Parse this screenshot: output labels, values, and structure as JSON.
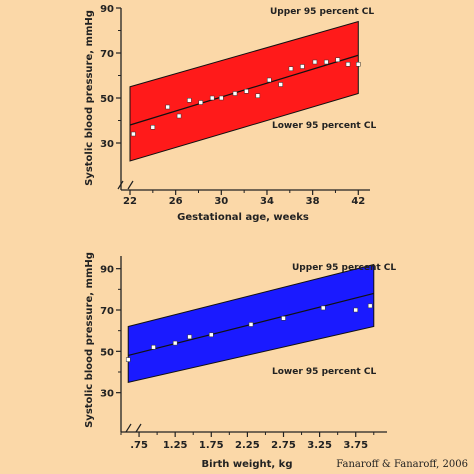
{
  "credit": "Fanaroff & Fanaroff, 2006",
  "colors": {
    "background": "#fbd8a8",
    "band_top": "#ff1a1a",
    "band_bottom": "#1a1aff",
    "axis": "#222222",
    "point": "#ffffff"
  },
  "chart_data": [
    {
      "type": "scatter",
      "xlabel": "Gestational age, weeks",
      "ylabel": "Systolic blood pressure, mmHg",
      "xlim": [
        22,
        42.5
      ],
      "ylim": [
        10,
        90
      ],
      "x_ticks": [
        22,
        26,
        30,
        34,
        38,
        42
      ],
      "x_minor_ticks": [
        24,
        28,
        32,
        36,
        40
      ],
      "y_ticks": [
        30,
        50,
        70,
        90
      ],
      "axis_break": true,
      "band_color": "#ff1a1a",
      "annotations": {
        "upper": "Upper 95 percent CL",
        "lower": "Lower 95 percent CL"
      },
      "band": {
        "x": [
          22,
          42
        ],
        "upper": [
          55,
          84
        ],
        "lower": [
          22,
          52
        ]
      },
      "regression": {
        "x": [
          22,
          42
        ],
        "y": [
          38,
          69
        ]
      },
      "points": [
        {
          "x": 22.3,
          "y": 34
        },
        {
          "x": 24,
          "y": 37
        },
        {
          "x": 25.3,
          "y": 46
        },
        {
          "x": 26.3,
          "y": 42
        },
        {
          "x": 27.2,
          "y": 49
        },
        {
          "x": 28.2,
          "y": 48
        },
        {
          "x": 29.2,
          "y": 50
        },
        {
          "x": 30,
          "y": 50
        },
        {
          "x": 31.2,
          "y": 52
        },
        {
          "x": 32.2,
          "y": 53
        },
        {
          "x": 33.2,
          "y": 51
        },
        {
          "x": 34.2,
          "y": 58
        },
        {
          "x": 35.2,
          "y": 56
        },
        {
          "x": 36.1,
          "y": 63
        },
        {
          "x": 37.1,
          "y": 64
        },
        {
          "x": 38.2,
          "y": 66
        },
        {
          "x": 39.2,
          "y": 66
        },
        {
          "x": 40.2,
          "y": 67
        },
        {
          "x": 41.1,
          "y": 65
        },
        {
          "x": 42,
          "y": 65
        }
      ]
    },
    {
      "type": "scatter",
      "xlabel": "Birth weight, kg",
      "ylabel": "Systolic blood pressure, mmHg",
      "xlim": [
        0.5,
        4.1
      ],
      "ylim": [
        10,
        100
      ],
      "x_ticks": [
        0.75,
        1.25,
        1.75,
        2.25,
        2.75,
        3.25,
        3.75
      ],
      "x_tick_labels": [
        ".75",
        "1.25",
        "1.75",
        "2.25",
        "2.75",
        "3.25",
        "3.75"
      ],
      "x_minor_ticks": [
        0.5,
        1.0,
        1.5,
        2.0,
        2.5,
        3.0,
        3.5,
        4.0
      ],
      "y_ticks": [
        30,
        50,
        70,
        90
      ],
      "axis_break": true,
      "band_color": "#1a1aff",
      "annotations": {
        "upper": "Upper 95 percent CL",
        "lower": "Lower 95 percent CL"
      },
      "band": {
        "x": [
          0.6,
          4.0
        ],
        "upper": [
          62,
          92
        ],
        "lower": [
          35,
          62
        ]
      },
      "regression": {
        "x": [
          0.6,
          4.0
        ],
        "y": [
          48,
          78
        ]
      },
      "points": [
        {
          "x": 0.6,
          "y": 46
        },
        {
          "x": 0.95,
          "y": 52
        },
        {
          "x": 1.25,
          "y": 54
        },
        {
          "x": 1.45,
          "y": 57
        },
        {
          "x": 1.75,
          "y": 58
        },
        {
          "x": 2.3,
          "y": 63
        },
        {
          "x": 2.75,
          "y": 66
        },
        {
          "x": 3.3,
          "y": 71
        },
        {
          "x": 3.75,
          "y": 70
        },
        {
          "x": 3.95,
          "y": 72
        }
      ]
    }
  ]
}
